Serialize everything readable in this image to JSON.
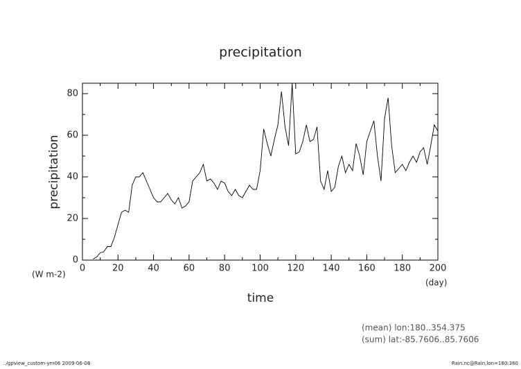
{
  "chart_data": {
    "type": "line",
    "title": "precipitation",
    "ylabel": "precipitation",
    "xlabel": "time",
    "y_units": "(W m-2)",
    "x_units": "(day)",
    "annotations": [
      "(mean) lon:180..354.375",
      "(sum) lat:-85.7606..85.7606"
    ],
    "footer_left": "../gpview_custom-ym06  2009-06-08",
    "footer_right": "Rain.nc@Rain,lon=180:360",
    "color": "#000000",
    "xlim": [
      0,
      200
    ],
    "xticks": [
      0,
      20,
      40,
      60,
      80,
      100,
      120,
      140,
      160,
      180,
      200
    ],
    "xminorticks": [
      10,
      30,
      50,
      70,
      90,
      110,
      130,
      150,
      170,
      190
    ],
    "ylim": [
      0,
      85
    ],
    "yticks": [
      0,
      20,
      40,
      60,
      80
    ],
    "yminorticks": [
      10,
      30,
      50,
      70
    ],
    "x": [
      0,
      2,
      4,
      6,
      8,
      10,
      12,
      14,
      16,
      18,
      20,
      22,
      24,
      26,
      28,
      30,
      32,
      34,
      36,
      38,
      40,
      42,
      44,
      46,
      48,
      50,
      52,
      54,
      56,
      58,
      60,
      62,
      64,
      66,
      68,
      70,
      72,
      74,
      76,
      78,
      80,
      82,
      84,
      86,
      88,
      90,
      92,
      94,
      96,
      98,
      100,
      102,
      104,
      106,
      108,
      110,
      112,
      114,
      116,
      118,
      120,
      122,
      124,
      126,
      128,
      130,
      132,
      134,
      136,
      138,
      140,
      142,
      144,
      146,
      148,
      150,
      152,
      154,
      156,
      158,
      160,
      162,
      164,
      166,
      168,
      170,
      172,
      174,
      176,
      178,
      180,
      182,
      184,
      186,
      188,
      190,
      192,
      194,
      196,
      198,
      200
    ],
    "values": [
      null,
      null,
      null,
      0.5,
      1.5,
      3.5,
      4,
      6.5,
      6.5,
      11,
      17,
      23,
      24,
      23,
      36,
      40,
      40,
      42,
      38,
      34,
      30,
      28,
      28,
      30,
      32,
      29,
      27,
      30,
      25,
      26,
      28,
      38,
      40,
      42,
      46,
      38,
      39,
      37,
      34,
      38,
      37,
      33,
      31,
      34,
      31,
      30,
      33,
      36,
      34,
      34,
      43,
      63,
      56,
      50,
      58,
      65,
      81,
      64,
      55,
      85,
      51,
      52,
      57,
      65,
      57,
      58,
      64,
      38,
      34,
      43,
      33,
      35,
      45,
      50,
      42,
      46,
      43,
      56,
      50,
      41,
      57,
      62,
      67,
      50,
      38,
      68,
      78,
      55,
      42,
      44,
      46,
      43,
      47,
      50,
      47,
      52,
      54,
      46,
      55,
      65,
      62
    ]
  }
}
